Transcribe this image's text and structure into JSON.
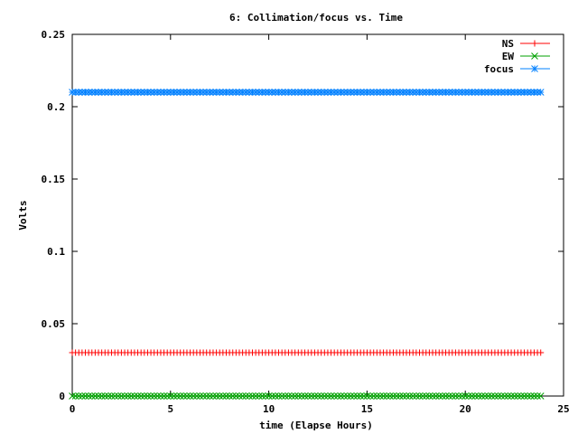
{
  "chart_data": {
    "type": "line",
    "title": "6: Collimation/focus vs. Time",
    "xlabel": "time (Elapse Hours)",
    "ylabel": "Volts",
    "xlim": [
      0,
      25
    ],
    "ylim": [
      0,
      0.25
    ],
    "xticks": [
      0,
      5,
      10,
      15,
      20,
      25
    ],
    "yticks": [
      0,
      0.05,
      0.1,
      0.15,
      0.2,
      0.25
    ],
    "xtick_labels": [
      "0",
      "5",
      "10",
      "15",
      "20",
      "25"
    ],
    "ytick_labels": [
      "0",
      "0.05",
      "0.1",
      "0.15",
      "0.2",
      "0.25"
    ],
    "grid": false,
    "legend_position": "top-right",
    "x_start": 0,
    "x_end": 23.9,
    "x_step": 0.1667,
    "series": [
      {
        "name": "NS",
        "value": 0.03,
        "color": "#ff0000",
        "marker": "plus"
      },
      {
        "name": "EW",
        "value": 0.0,
        "color": "#00a000",
        "marker": "cross"
      },
      {
        "name": "focus",
        "value": 0.21,
        "color": "#0080ff",
        "marker": "star"
      }
    ]
  }
}
